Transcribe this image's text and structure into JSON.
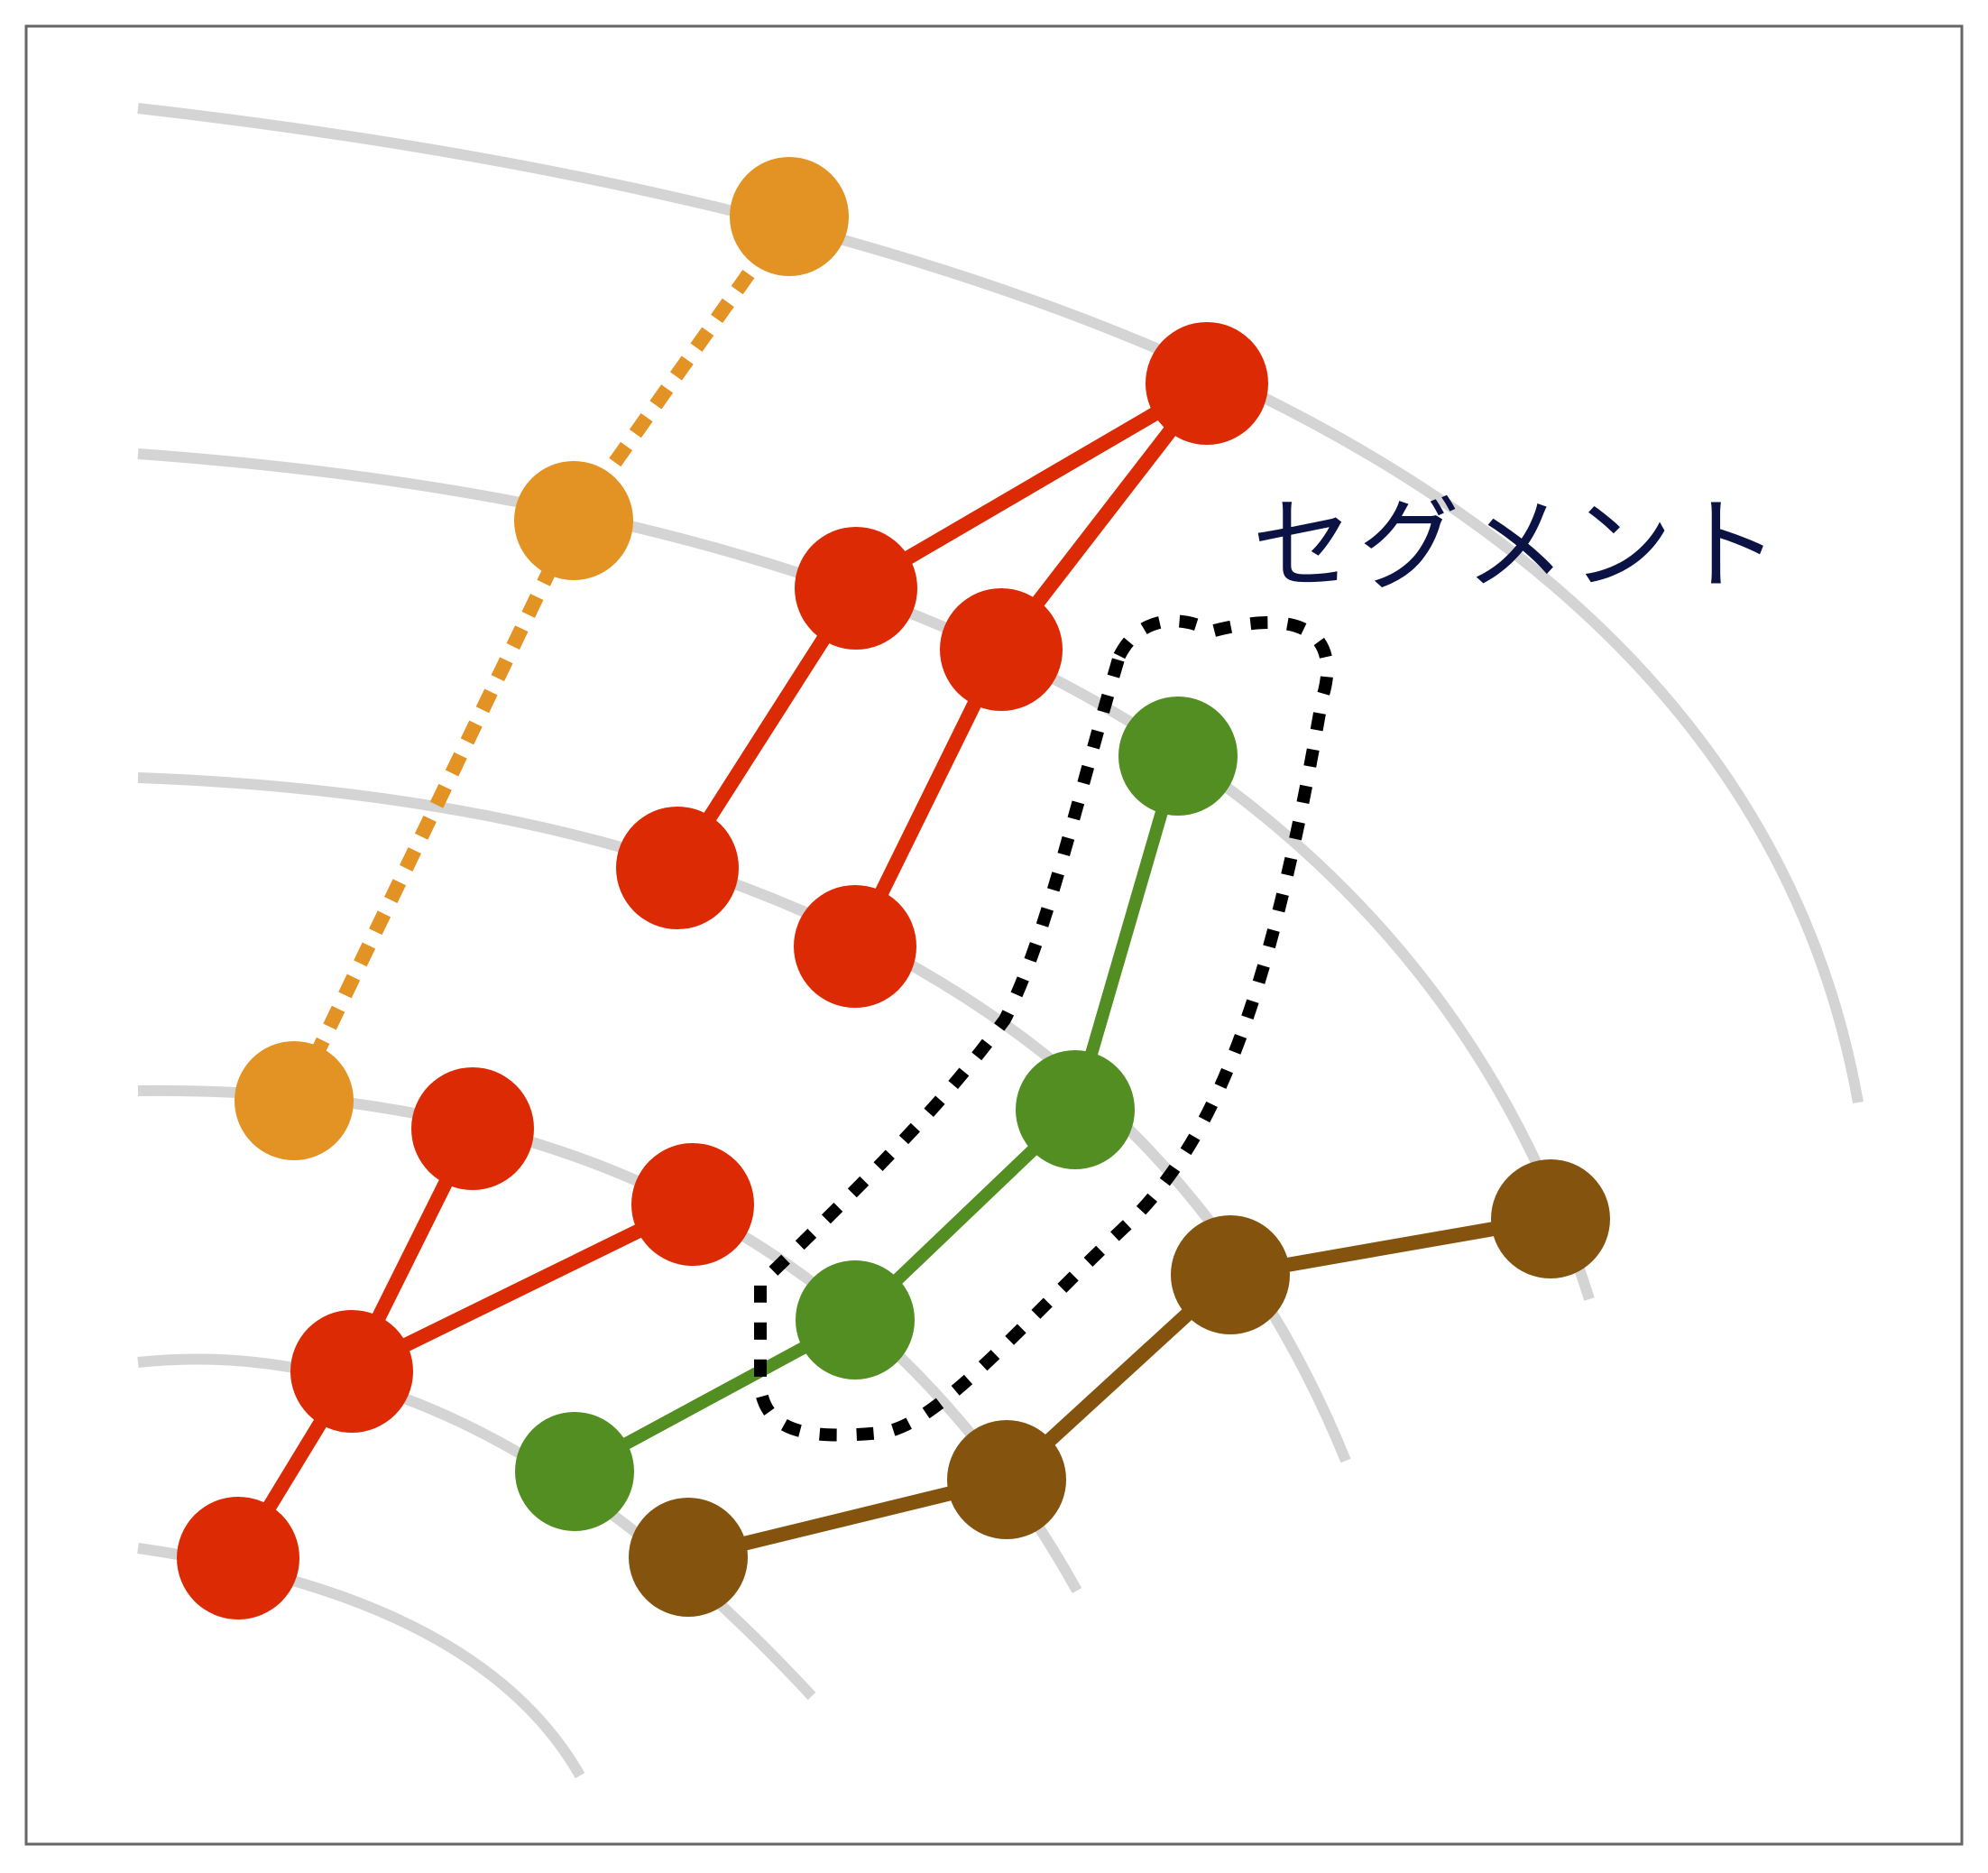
{
  "diagram": {
    "label": "セグメント",
    "colors": {
      "background": "#ffffff",
      "frame": "#666666",
      "guide": "#d4d4d4",
      "orange": "#e39224",
      "red": "#dc2b04",
      "green": "#528e22",
      "brown": "#84540f",
      "outline": "#000000",
      "label": "#0b1244"
    }
  }
}
